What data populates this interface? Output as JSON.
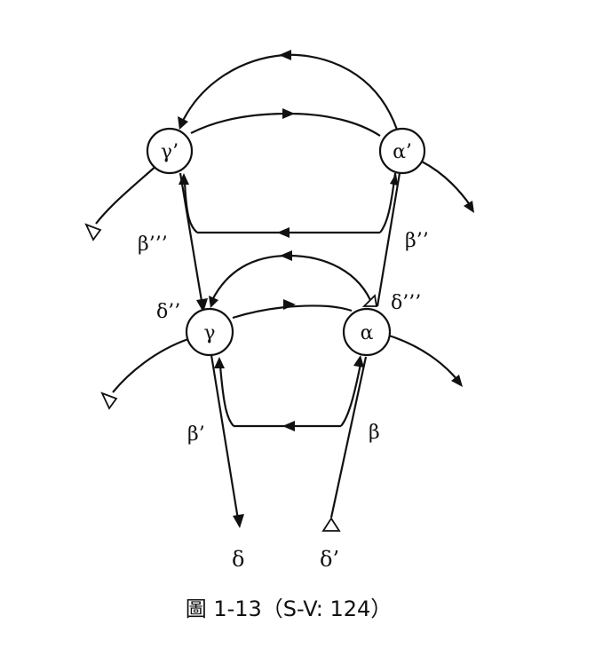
{
  "diagram": {
    "nodes": {
      "gamma_prime": "γ’",
      "alpha_prime": "α’",
      "gamma": "γ",
      "alpha": "α"
    },
    "labels": {
      "beta_triple": "β’’’",
      "beta_double": "β’’",
      "delta_double": "δ’’",
      "delta_triple": "δ’’’",
      "beta_prime": "β’",
      "beta": "β",
      "delta": "δ",
      "delta_prime": "δ’"
    },
    "caption": "圖 1-13（S-V: 124）"
  }
}
